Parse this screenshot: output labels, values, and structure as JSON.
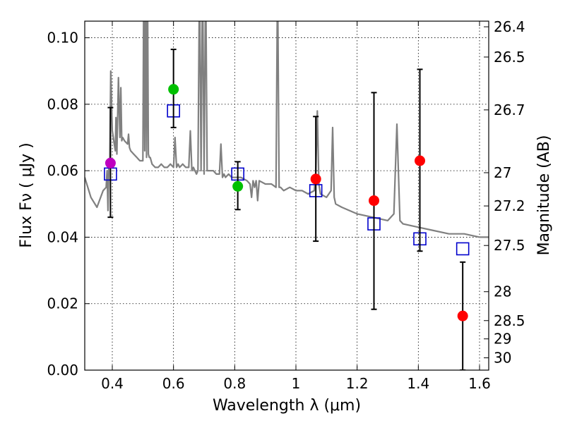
{
  "chart_data": {
    "type": "scatter",
    "title": "",
    "xlabel": "Wavelength  λ (μm)",
    "ylabel": "Flux  Fν  ( μJy )",
    "y2label": "Magnitude (AB)",
    "xlim": [
      0.31,
      1.63
    ],
    "ylim": [
      0.0,
      0.105
    ],
    "grid": true,
    "x_ticks": [
      0.4,
      0.6,
      0.8,
      1.0,
      1.2,
      1.4,
      1.6
    ],
    "x_tick_labels": [
      "0.4",
      "0.6",
      "0.8",
      "1",
      "1.2",
      "1.4",
      "1.6"
    ],
    "y_ticks": [
      0.0,
      0.02,
      0.04,
      0.06,
      0.08,
      0.1
    ],
    "y_tick_labels": [
      "0.00",
      "0.02",
      "0.04",
      "0.06",
      "0.08",
      "0.10"
    ],
    "right_axis_ticks": [
      {
        "label": "26.4",
        "flux": 0.1033
      },
      {
        "label": "26.5",
        "flux": 0.0942
      },
      {
        "label": "26.7",
        "flux": 0.0783
      },
      {
        "label": "27",
        "flux": 0.0594
      },
      {
        "label": "27.2",
        "flux": 0.0494
      },
      {
        "label": "27.5",
        "flux": 0.0375
      },
      {
        "label": "28",
        "flux": 0.0236
      },
      {
        "label": "28.5",
        "flux": 0.0149
      },
      {
        "label": "29",
        "flux": 0.0094
      },
      {
        "label": "30",
        "flux": 0.0037
      }
    ],
    "model_spectrum": {
      "color": "#808080",
      "x": [
        0.31,
        0.33,
        0.35,
        0.37,
        0.38,
        0.383,
        0.386,
        0.389,
        0.392,
        0.395,
        0.4,
        0.41,
        0.412,
        0.415,
        0.42,
        0.425,
        0.428,
        0.431,
        0.434,
        0.44,
        0.45,
        0.453,
        0.456,
        0.46,
        0.47,
        0.48,
        0.49,
        0.5,
        0.503,
        0.506,
        0.509,
        0.512,
        0.515,
        0.518,
        0.521,
        0.524,
        0.527,
        0.53,
        0.54,
        0.55,
        0.56,
        0.57,
        0.58,
        0.59,
        0.6,
        0.605,
        0.61,
        0.615,
        0.62,
        0.63,
        0.64,
        0.65,
        0.655,
        0.66,
        0.665,
        0.67,
        0.675,
        0.68,
        0.685,
        0.69,
        0.695,
        0.7,
        0.705,
        0.71,
        0.72,
        0.73,
        0.74,
        0.75,
        0.755,
        0.76,
        0.765,
        0.77,
        0.78,
        0.79,
        0.8,
        0.82,
        0.84,
        0.85,
        0.855,
        0.86,
        0.865,
        0.87,
        0.875,
        0.88,
        0.9,
        0.92,
        0.935,
        0.94,
        0.945,
        0.95,
        0.96,
        0.98,
        1.0,
        1.02,
        1.04,
        1.06,
        1.065,
        1.07,
        1.075,
        1.08,
        1.1,
        1.115,
        1.12,
        1.125,
        1.13,
        1.15,
        1.2,
        1.25,
        1.3,
        1.32,
        1.33,
        1.34,
        1.35,
        1.4,
        1.45,
        1.5,
        1.55,
        1.6,
        1.63
      ],
      "y": [
        0.058,
        0.052,
        0.049,
        0.054,
        0.055,
        0.06,
        0.048,
        0.062,
        0.064,
        0.09,
        0.072,
        0.066,
        0.076,
        0.065,
        0.088,
        0.07,
        0.085,
        0.069,
        0.07,
        0.069,
        0.068,
        0.071,
        0.067,
        0.066,
        0.065,
        0.064,
        0.063,
        0.063,
        0.12,
        0.066,
        0.12,
        0.064,
        0.12,
        0.065,
        0.064,
        0.064,
        0.063,
        0.062,
        0.061,
        0.061,
        0.062,
        0.061,
        0.061,
        0.062,
        0.061,
        0.07,
        0.061,
        0.062,
        0.061,
        0.062,
        0.061,
        0.061,
        0.072,
        0.06,
        0.061,
        0.06,
        0.059,
        0.06,
        0.12,
        0.06,
        0.12,
        0.059,
        0.12,
        0.06,
        0.06,
        0.06,
        0.059,
        0.059,
        0.068,
        0.058,
        0.059,
        0.058,
        0.059,
        0.058,
        0.058,
        0.058,
        0.057,
        0.056,
        0.052,
        0.057,
        0.055,
        0.057,
        0.051,
        0.057,
        0.056,
        0.056,
        0.055,
        0.12,
        0.055,
        0.055,
        0.054,
        0.055,
        0.054,
        0.054,
        0.053,
        0.054,
        0.06,
        0.078,
        0.056,
        0.053,
        0.052,
        0.054,
        0.073,
        0.052,
        0.05,
        0.049,
        0.047,
        0.046,
        0.045,
        0.047,
        0.074,
        0.045,
        0.044,
        0.043,
        0.042,
        0.041,
        0.041,
        0.04,
        0.04
      ]
    },
    "template_points": {
      "color": "#0000cc",
      "x": [
        0.394,
        0.6,
        0.81,
        1.065,
        1.255,
        1.405,
        1.545
      ],
      "y": [
        0.059,
        0.078,
        0.059,
        0.054,
        0.044,
        0.0395,
        0.0365
      ]
    },
    "observations": {
      "x": [
        0.394,
        0.6,
        0.81,
        1.065,
        1.255,
        1.405,
        1.545
      ],
      "y": [
        0.0623,
        0.0845,
        0.0553,
        0.0575,
        0.051,
        0.063,
        0.0163
      ],
      "y_lower": [
        0.046,
        0.073,
        0.0483,
        0.0388,
        0.0183,
        0.0358,
        0.0
      ],
      "y_upper": [
        0.079,
        0.0965,
        0.0627,
        0.0763,
        0.0835,
        0.0905,
        0.0325
      ],
      "colors": [
        "#bf00bf",
        "#00c000",
        "#00c000",
        "#ff0000",
        "#ff0000",
        "#ff0000",
        "#ff0000"
      ]
    }
  }
}
